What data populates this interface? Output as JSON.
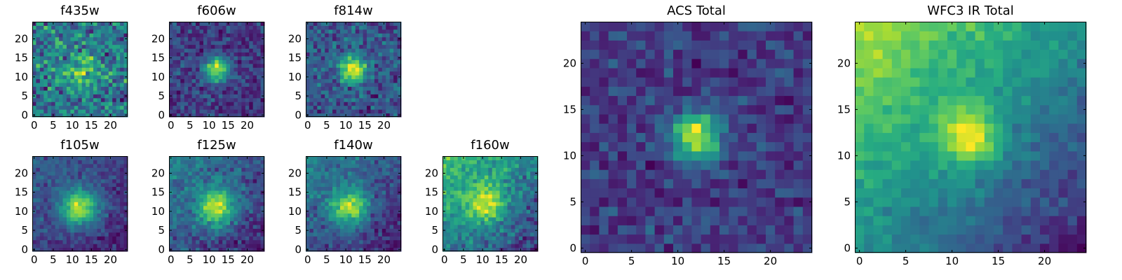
{
  "colors": {
    "background": "#ffffff",
    "axis": "#000000",
    "colormap": "viridis",
    "colormap_low": "#440154",
    "colormap_high": "#fde725"
  },
  "chart_data": [
    {
      "type": "heatmap",
      "title": "f435w",
      "grid_size": 25,
      "peak": [
        12,
        11
      ],
      "sigma": 3.2,
      "amplitude": 0.35,
      "noise": 0.38,
      "gradient": 0.0,
      "seed": 11,
      "x_ticks": [
        0,
        5,
        10,
        15,
        20
      ],
      "x_tick_labels": [
        "0",
        "5",
        "10",
        "15",
        "20"
      ],
      "y_ticks": [
        0,
        5,
        10,
        15,
        20
      ],
      "y_tick_labels": [
        "0",
        "5",
        "10",
        "15",
        "20"
      ],
      "xlim": [
        -0.5,
        24.5
      ],
      "ylim": [
        -0.5,
        24.5
      ]
    },
    {
      "type": "heatmap",
      "title": "f606w",
      "grid_size": 25,
      "peak": [
        12,
        12
      ],
      "sigma": 2.2,
      "amplitude": 1.0,
      "noise": 0.32,
      "gradient": 0.05,
      "seed": 23,
      "x_ticks": [
        0,
        5,
        10,
        15,
        20
      ],
      "x_tick_labels": [
        "0",
        "5",
        "10",
        "15",
        "20"
      ],
      "y_ticks": [
        0,
        5,
        10,
        15,
        20
      ],
      "y_tick_labels": [
        "0",
        "5",
        "10",
        "15",
        "20"
      ],
      "xlim": [
        -0.5,
        24.5
      ],
      "ylim": [
        -0.5,
        24.5
      ]
    },
    {
      "type": "heatmap",
      "title": "f814w",
      "grid_size": 25,
      "peak": [
        12,
        12
      ],
      "sigma": 2.4,
      "amplitude": 0.9,
      "noise": 0.33,
      "gradient": 0.1,
      "seed": 37,
      "x_ticks": [
        0,
        5,
        10,
        15,
        20
      ],
      "x_tick_labels": [
        "0",
        "5",
        "10",
        "15",
        "20"
      ],
      "y_ticks": [
        0,
        5,
        10,
        15,
        20
      ],
      "y_tick_labels": [
        "0",
        "5",
        "10",
        "15",
        "20"
      ],
      "xlim": [
        -0.5,
        24.5
      ],
      "ylim": [
        -0.5,
        24.5
      ]
    },
    {
      "type": "heatmap",
      "title": "f105w",
      "grid_size": 25,
      "peak": [
        12,
        11
      ],
      "sigma": 3.4,
      "amplitude": 1.1,
      "noise": 0.26,
      "gradient": 0.35,
      "seed": 41,
      "x_ticks": [
        0,
        5,
        10,
        15,
        20
      ],
      "x_tick_labels": [
        "0",
        "5",
        "10",
        "15",
        "20"
      ],
      "y_ticks": [
        0,
        5,
        10,
        15,
        20
      ],
      "y_tick_labels": [
        "0",
        "5",
        "10",
        "15",
        "20"
      ],
      "xlim": [
        -0.5,
        24.5
      ],
      "ylim": [
        -0.5,
        24.5
      ]
    },
    {
      "type": "heatmap",
      "title": "f125w",
      "grid_size": 25,
      "peak": [
        12,
        11
      ],
      "sigma": 3.4,
      "amplitude": 0.9,
      "noise": 0.27,
      "gradient": 0.45,
      "seed": 53,
      "x_ticks": [
        0,
        5,
        10,
        15,
        20
      ],
      "x_tick_labels": [
        "0",
        "5",
        "10",
        "15",
        "20"
      ],
      "y_ticks": [
        0,
        5,
        10,
        15,
        20
      ],
      "y_tick_labels": [
        "0",
        "5",
        "10",
        "15",
        "20"
      ],
      "xlim": [
        -0.5,
        24.5
      ],
      "ylim": [
        -0.5,
        24.5
      ]
    },
    {
      "type": "heatmap",
      "title": "f140w",
      "grid_size": 25,
      "peak": [
        11,
        11
      ],
      "sigma": 3.4,
      "amplitude": 0.9,
      "noise": 0.27,
      "gradient": 0.5,
      "seed": 67,
      "x_ticks": [
        0,
        5,
        10,
        15,
        20
      ],
      "x_tick_labels": [
        "0",
        "5",
        "10",
        "15",
        "20"
      ],
      "y_ticks": [
        0,
        5,
        10,
        15,
        20
      ],
      "y_tick_labels": [
        "0",
        "5",
        "10",
        "15",
        "20"
      ],
      "xlim": [
        -0.5,
        24.5
      ],
      "ylim": [
        -0.5,
        24.5
      ]
    },
    {
      "type": "heatmap",
      "title": "f160w",
      "grid_size": 25,
      "peak": [
        11,
        12
      ],
      "sigma": 3.6,
      "amplitude": 0.55,
      "noise": 0.27,
      "gradient": 0.65,
      "seed": 79,
      "x_ticks": [
        0,
        5,
        10,
        15,
        20
      ],
      "x_tick_labels": [
        "0",
        "5",
        "10",
        "15",
        "20"
      ],
      "y_ticks": [
        0,
        5,
        10,
        15,
        20
      ],
      "y_tick_labels": [
        "0",
        "5",
        "10",
        "15",
        "20"
      ],
      "xlim": [
        -0.5,
        24.5
      ],
      "ylim": [
        -0.5,
        24.5
      ]
    },
    {
      "type": "heatmap",
      "title": "ACS Total",
      "grid_size": 25,
      "peak": [
        12,
        12
      ],
      "sigma": 1.8,
      "amplitude": 1.0,
      "noise": 0.24,
      "gradient": 0.0,
      "seed": 97,
      "x_ticks": [
        0,
        5,
        10,
        15,
        20
      ],
      "x_tick_labels": [
        "0",
        "5",
        "10",
        "15",
        "20"
      ],
      "y_ticks": [
        0,
        5,
        10,
        15,
        20
      ],
      "y_tick_labels": [
        "0",
        "5",
        "10",
        "15",
        "20"
      ],
      "xlim": [
        -0.5,
        24.5
      ],
      "ylim": [
        -0.5,
        24.5
      ]
    },
    {
      "type": "heatmap",
      "title": "WFC3 IR Total",
      "grid_size": 25,
      "peak": [
        12,
        12
      ],
      "sigma": 2.2,
      "amplitude": 0.55,
      "noise": 0.13,
      "gradient": 0.85,
      "seed": 113,
      "x_ticks": [
        0,
        5,
        10,
        15,
        20
      ],
      "x_tick_labels": [
        "0",
        "5",
        "10",
        "15",
        "20"
      ],
      "y_ticks": [
        0,
        5,
        10,
        15,
        20
      ],
      "y_tick_labels": [
        "0",
        "5",
        "10",
        "15",
        "20"
      ],
      "xlim": [
        -0.5,
        24.5
      ],
      "ylim": [
        -0.5,
        24.5
      ]
    }
  ]
}
